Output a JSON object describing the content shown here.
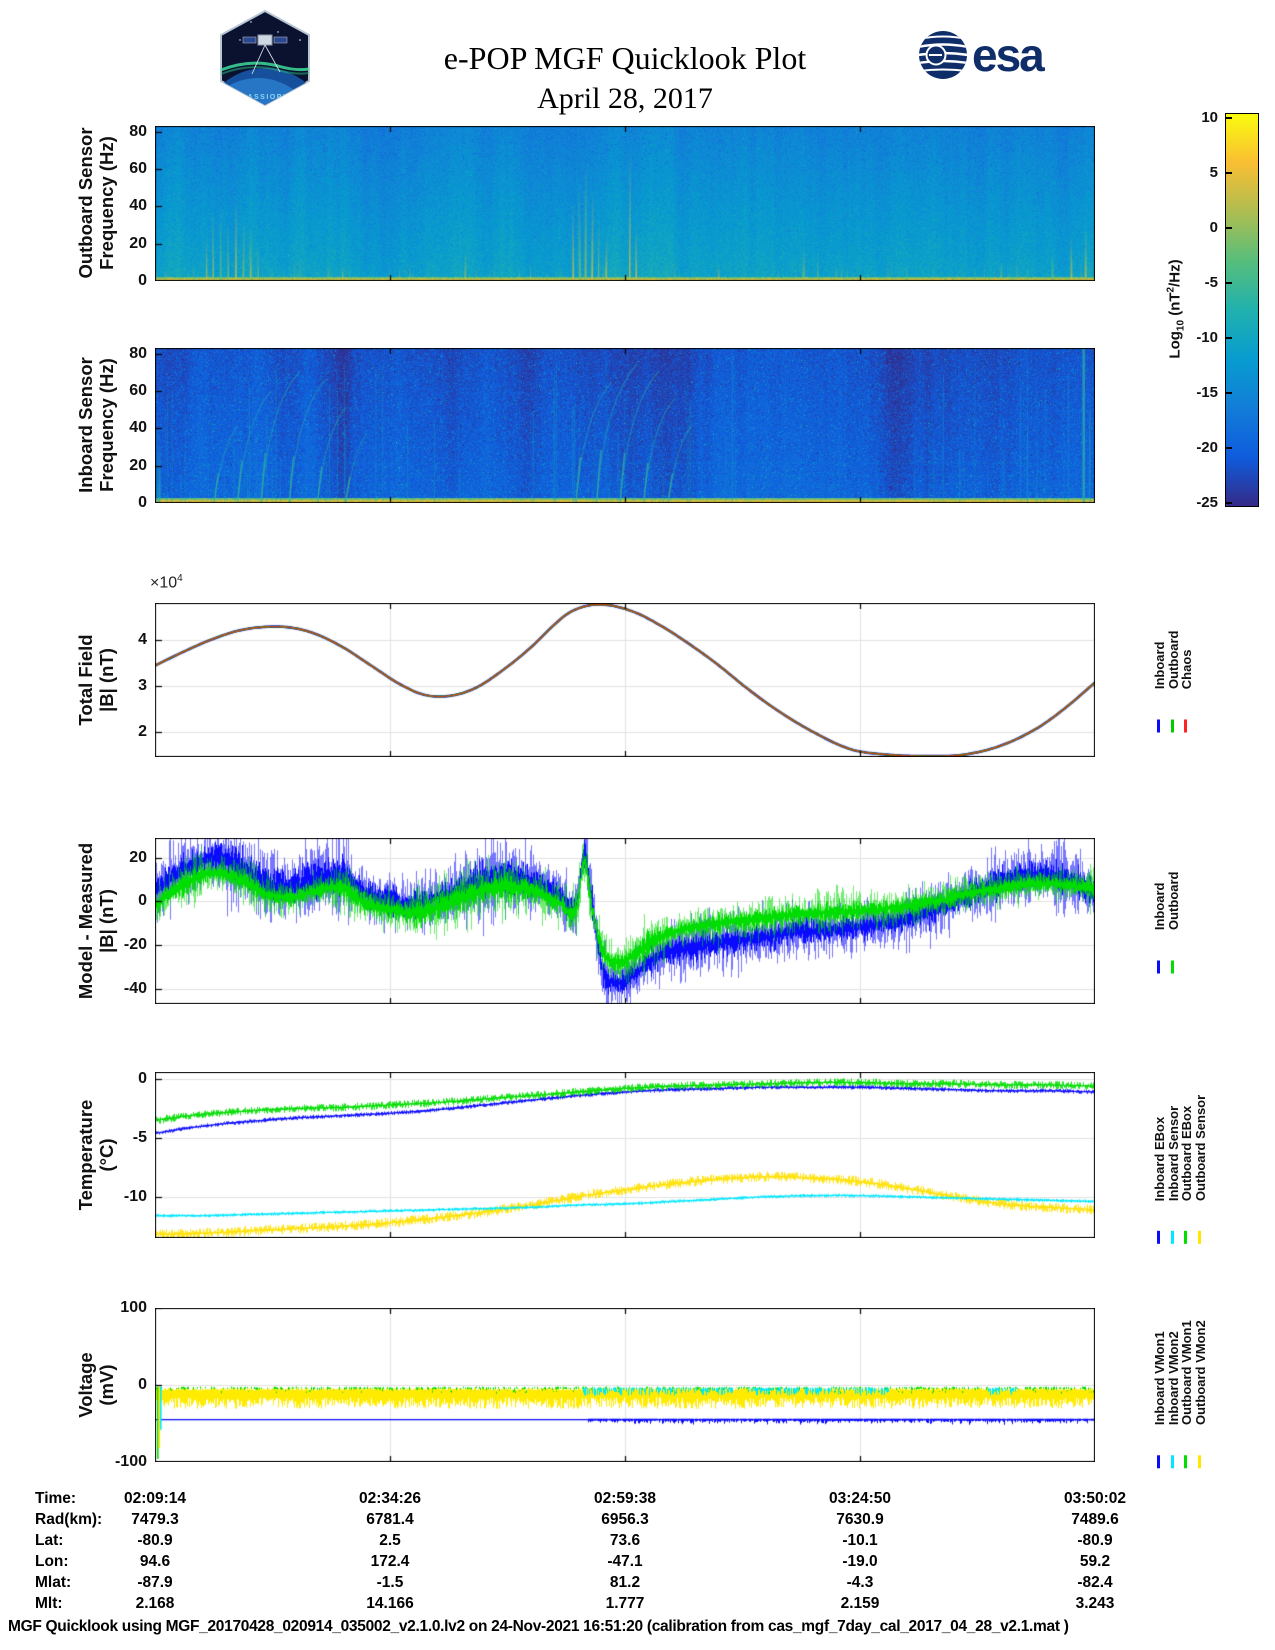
{
  "header": {
    "title": "e-POP MGF Quicklook Plot",
    "date": "April 28, 2017",
    "patch_text": "CASSIOPE",
    "esa_text": "esa"
  },
  "colorbar": {
    "label_prefix": "Log",
    "label_sub": "10",
    "label_mid": " (nT",
    "label_sup": "2",
    "label_suffix": "/Hz)",
    "ticks": [
      "10",
      "5",
      "0",
      "-5",
      "-10",
      "-15",
      "-20",
      "-25"
    ]
  },
  "panels": {
    "outboard_spec": {
      "ylabel1": "Outboard Sensor",
      "ylabel2": "Frequency (Hz)",
      "yticks": [
        "80",
        "60",
        "40",
        "20",
        "0"
      ]
    },
    "inboard_spec": {
      "ylabel1": "Inboard Sensor",
      "ylabel2": "Frequency (Hz)",
      "yticks": [
        "80",
        "60",
        "40",
        "20",
        "0"
      ]
    },
    "total_field": {
      "ylabel1": "Total Field",
      "ylabel2": "|B| (nT)",
      "yticks": [
        "4",
        "3",
        "2"
      ],
      "exp_times": "×10",
      "exp_power": "4",
      "legend": [
        {
          "label": "Inboard",
          "color": "#0a0aff"
        },
        {
          "label": "Outboard",
          "color": "#00cc00"
        },
        {
          "label": "Chaos",
          "color": "#ff2222"
        }
      ]
    },
    "model_measured": {
      "ylabel1": "Model - Measured",
      "ylabel2": "|B| (nT)",
      "yticks": [
        "20",
        "0",
        "-20",
        "-40"
      ],
      "legend": [
        {
          "label": "Inboard",
          "color": "#0a0aff"
        },
        {
          "label": "Outboard",
          "color": "#00dd00"
        }
      ]
    },
    "temperature": {
      "ylabel1": "Temperature",
      "ylabel2": "(°C)",
      "yticks": [
        "0",
        "-5",
        "-10"
      ],
      "legend": [
        {
          "label": "Inboard EBox",
          "color": "#0a0aff"
        },
        {
          "label": "Inboard Sensor",
          "color": "#00e8ff"
        },
        {
          "label": "Outboard EBox",
          "color": "#00dd00"
        },
        {
          "label": "Outboard Sensor",
          "color": "#ffe800"
        }
      ]
    },
    "voltage": {
      "ylabel1": "Voltage",
      "ylabel2": "(mV)",
      "yticks": [
        "100",
        "0",
        "-100"
      ],
      "legend": [
        {
          "label": "Inboard VMon1",
          "color": "#0a0aff"
        },
        {
          "label": "Inboard VMon2",
          "color": "#00e8ff"
        },
        {
          "label": "Outboard VMon1",
          "color": "#00dd00"
        },
        {
          "label": "Outboard VMon2",
          "color": "#ffe800"
        }
      ]
    }
  },
  "ephemeris_table": {
    "row_labels": [
      "Time:",
      "Rad(km):",
      "Lat:",
      "Lon:",
      "Mlat:",
      "Mlt:"
    ],
    "columns": [
      [
        "02:09:14",
        "7479.3",
        "-80.9",
        "94.6",
        "-87.9",
        "2.168"
      ],
      [
        "02:34:26",
        "6781.4",
        "2.5",
        "172.4",
        "-1.5",
        "14.166"
      ],
      [
        "02:59:38",
        "6956.3",
        "73.6",
        "-47.1",
        "81.2",
        "1.777"
      ],
      [
        "03:24:50",
        "7630.9",
        "-10.1",
        "-19.0",
        "-4.3",
        "2.159"
      ],
      [
        "03:50:02",
        "7489.6",
        "-80.9",
        "59.2",
        "-82.4",
        "3.243"
      ]
    ]
  },
  "footer": "MGF Quicklook using MGF_20170428_020914_035002_v2.1.0.lv2 on 24-Nov-2021 16:51:20 (calibration from cas_mgf_7day_cal_2017_04_28_v2.1.mat )",
  "chart_data": [
    {
      "name": "outboard_spectrogram",
      "type": "heatmap",
      "ylabel": "Outboard Sensor Frequency (Hz)",
      "ylim": [
        0,
        80
      ],
      "clim": [
        -25,
        10
      ],
      "clabel": "Log10 (nT²/Hz)",
      "x_time_range": [
        "02:09:14",
        "03:50:02"
      ],
      "summary": "uniform blue-cyan background near -12, bright yellow band below ~3 Hz near +5, vertical burst streaks",
      "render": {
        "base": 0.33,
        "noise": 0.045,
        "grad": 0.14,
        "speckleP": 0.06,
        "speckleA": 0.22,
        "darkP": 0.015,
        "darkT": 0.12,
        "bandH": 5,
        "smallStreaks": 90,
        "streaks": [
          [
            0.055,
            0.3
          ],
          [
            0.062,
            0.46
          ],
          [
            0.07,
            0.52
          ],
          [
            0.078,
            0.4
          ],
          [
            0.086,
            0.55
          ],
          [
            0.094,
            0.42
          ],
          [
            0.102,
            0.34
          ],
          [
            0.11,
            0.25
          ],
          [
            0.2,
            0.1
          ],
          [
            0.33,
            0.18
          ],
          [
            0.4,
            0.12
          ],
          [
            0.445,
            0.5
          ],
          [
            0.452,
            0.64
          ],
          [
            0.458,
            0.76
          ],
          [
            0.465,
            0.58
          ],
          [
            0.472,
            0.42
          ],
          [
            0.48,
            0.3
          ],
          [
            0.505,
            0.86
          ],
          [
            0.512,
            0.36
          ],
          [
            0.6,
            0.1
          ],
          [
            0.69,
            0.22
          ],
          [
            0.705,
            0.18
          ],
          [
            0.8,
            0.1
          ],
          [
            0.9,
            0.12
          ],
          [
            0.955,
            0.2
          ],
          [
            0.975,
            0.28
          ],
          [
            0.99,
            0.34
          ]
        ]
      }
    },
    {
      "name": "inboard_spectrogram",
      "type": "heatmap",
      "ylabel": "Inboard Sensor Frequency (Hz)",
      "ylim": [
        0,
        80
      ],
      "clim": [
        -25,
        10
      ],
      "clabel": "Log10 (nT²/Hz)",
      "x_time_range": [
        "02:09:14",
        "03:50:02"
      ],
      "summary": "dark blue background near -20 with cyan speckle, yellow band below ~3 Hz, rising arc filaments near 02:20 and 02:55, comb of faint vertical lines, bright column near right edge",
      "render": {
        "base": 0.13,
        "noise": 0.05,
        "grad": 0.06,
        "speckleP": 0.05,
        "speckleA": 0.26,
        "darkP": 0.03,
        "darkT": 0.05,
        "cyanP": 0.025,
        "bandH": 6,
        "combRanges": [
          [
            0.0,
            0.33,
            30
          ],
          [
            0.4,
            0.62,
            24
          ],
          [
            0.8,
            1.0,
            16
          ]
        ],
        "arcs": [
          [
            0.065,
            0.5
          ],
          [
            0.09,
            0.72
          ],
          [
            0.115,
            0.85
          ],
          [
            0.145,
            0.8
          ],
          [
            0.175,
            0.62
          ],
          [
            0.205,
            0.45
          ],
          [
            0.45,
            0.78
          ],
          [
            0.472,
            0.9
          ],
          [
            0.497,
            0.85
          ],
          [
            0.522,
            0.68
          ],
          [
            0.548,
            0.5
          ]
        ],
        "hlines": [
          0.07,
          0.12,
          0.18,
          0.26
        ],
        "brightCol": 0.988
      }
    },
    {
      "name": "total_field",
      "type": "line",
      "title": "Total Field |B| (nT)",
      "ylabel": "|B| (nT)",
      "y_scale": 10000,
      "ylim_1e4": [
        1.45,
        4.82
      ],
      "series_names": [
        "Inboard",
        "Outboard",
        "Chaos"
      ],
      "note": "all three curves overlap",
      "x": [
        0,
        0.03,
        0.06,
        0.09,
        0.12,
        0.145,
        0.17,
        0.2,
        0.23,
        0.26,
        0.285,
        0.31,
        0.34,
        0.37,
        0.4,
        0.425,
        0.44,
        0.46,
        0.48,
        0.51,
        0.54,
        0.57,
        0.6,
        0.63,
        0.66,
        0.7,
        0.74,
        0.78,
        0.82,
        0.86,
        0.9,
        0.94,
        0.97,
        1.0
      ],
      "y_1e4": [
        3.45,
        3.75,
        4.02,
        4.22,
        4.3,
        4.28,
        4.15,
        3.85,
        3.45,
        3.05,
        2.82,
        2.78,
        2.95,
        3.35,
        3.85,
        4.35,
        4.6,
        4.76,
        4.78,
        4.62,
        4.3,
        3.9,
        3.45,
        2.95,
        2.5,
        2.0,
        1.62,
        1.5,
        1.47,
        1.5,
        1.7,
        2.1,
        2.55,
        3.08
      ]
    },
    {
      "name": "model_minus_measured",
      "type": "line",
      "title": "Model - Measured |B| (nT)",
      "ylim": [
        -47,
        29
      ],
      "series": [
        {
          "name": "Inboard",
          "color": "#0a0aff",
          "spread": 7,
          "x": [
            0,
            0.02,
            0.04,
            0.06,
            0.09,
            0.12,
            0.15,
            0.17,
            0.2,
            0.22,
            0.25,
            0.28,
            0.31,
            0.34,
            0.37,
            0.4,
            0.43,
            0.449,
            0.456,
            0.463,
            0.475,
            0.49,
            0.51,
            0.53,
            0.56,
            0.6,
            0.64,
            0.68,
            0.72,
            0.76,
            0.8,
            0.84,
            0.87,
            0.9,
            0.93,
            0.96,
            0.98,
            1.0
          ],
          "y": [
            5,
            12,
            17,
            20,
            16,
            8,
            7,
            10,
            11,
            5,
            0,
            -1,
            3,
            8,
            11,
            9,
            3,
            0,
            22,
            5,
            -30,
            -37,
            -33,
            -26,
            -22,
            -19,
            -17,
            -14,
            -13,
            -11,
            -8,
            -2,
            4,
            9,
            12,
            11,
            8,
            3
          ]
        },
        {
          "name": "Outboard",
          "color": "#00dd00",
          "spread": 4.5,
          "x": [
            0,
            0.02,
            0.04,
            0.06,
            0.09,
            0.12,
            0.15,
            0.17,
            0.2,
            0.22,
            0.25,
            0.28,
            0.31,
            0.34,
            0.37,
            0.4,
            0.43,
            0.449,
            0.456,
            0.463,
            0.475,
            0.49,
            0.51,
            0.53,
            0.56,
            0.6,
            0.64,
            0.68,
            0.72,
            0.76,
            0.8,
            0.84,
            0.87,
            0.9,
            0.93,
            0.96,
            0.98,
            1.0
          ],
          "y": [
            -2,
            5,
            10,
            13,
            10,
            3,
            2,
            5,
            6,
            0,
            -4,
            -5,
            -1,
            4,
            7,
            5,
            -1,
            -2,
            18,
            0,
            -22,
            -28,
            -24,
            -18,
            -13,
            -10,
            -8,
            -6,
            -5,
            -4,
            -2,
            1,
            4,
            6,
            8,
            8,
            7,
            5
          ]
        }
      ]
    },
    {
      "name": "temperature",
      "type": "line",
      "title": "Temperature (°C)",
      "ylim": [
        -13.5,
        0.6
      ],
      "x": [
        0,
        0.05,
        0.1,
        0.15,
        0.2,
        0.25,
        0.3,
        0.35,
        0.4,
        0.45,
        0.5,
        0.55,
        0.6,
        0.65,
        0.7,
        0.75,
        0.8,
        0.85,
        0.9,
        0.95,
        1.0
      ],
      "series": [
        {
          "name": "Inboard EBox",
          "color": "#0a0aff",
          "spread": 0.12,
          "y": [
            -4.6,
            -4.0,
            -3.6,
            -3.3,
            -3.1,
            -2.9,
            -2.6,
            -2.2,
            -1.8,
            -1.4,
            -1.1,
            -0.9,
            -0.8,
            -0.7,
            -0.7,
            -0.7,
            -0.8,
            -0.9,
            -1.0,
            -1.0,
            -1.1
          ]
        },
        {
          "name": "Inboard Sensor",
          "color": "#00e8ff",
          "spread": 0.1,
          "y": [
            -11.6,
            -11.6,
            -11.5,
            -11.4,
            -11.3,
            -11.2,
            -11.1,
            -11.0,
            -10.9,
            -10.7,
            -10.6,
            -10.4,
            -10.2,
            -10.0,
            -9.9,
            -9.9,
            -10.0,
            -10.1,
            -10.2,
            -10.3,
            -10.4
          ]
        },
        {
          "name": "Outboard EBox",
          "color": "#00dd00",
          "spread": 0.22,
          "y": [
            -3.5,
            -3.0,
            -2.7,
            -2.5,
            -2.4,
            -2.2,
            -2.0,
            -1.7,
            -1.4,
            -1.1,
            -0.8,
            -0.6,
            -0.5,
            -0.4,
            -0.3,
            -0.3,
            -0.4,
            -0.4,
            -0.5,
            -0.5,
            -0.6
          ]
        },
        {
          "name": "Outboard Sensor",
          "color": "#ffe100",
          "spread": 0.28,
          "y": [
            -13.2,
            -13.1,
            -12.9,
            -12.7,
            -12.5,
            -12.2,
            -11.8,
            -11.3,
            -10.7,
            -10.0,
            -9.4,
            -8.9,
            -8.5,
            -8.3,
            -8.4,
            -8.7,
            -9.3,
            -10.0,
            -10.6,
            -10.9,
            -11.1
          ]
        }
      ]
    },
    {
      "name": "voltage",
      "type": "line",
      "title": "Voltage (mV)",
      "ylim": [
        -100,
        100
      ],
      "series": [
        {
          "name": "Outboard VMon1",
          "color": "#00dd00",
          "style": "spikes",
          "top": -2,
          "depth": 7,
          "density": 0.5,
          "x_ranges": [
            [
              0,
              1
            ]
          ]
        },
        {
          "name": "Outboard VMon2",
          "color": "#ffeb00",
          "style": "band",
          "top": -4,
          "depth": 27,
          "density": 1,
          "x_ranges": [
            [
              0,
              1
            ]
          ]
        },
        {
          "name": "Inboard VMon2",
          "color": "#00e8ff",
          "style": "spikes",
          "top": -3,
          "depth": 11,
          "density": 0.55,
          "x_ranges": [
            [
              0.455,
              0.615
            ],
            [
              0.63,
              0.78
            ],
            [
              0.885,
              0.915
            ]
          ]
        },
        {
          "name": "Inboard VMon1",
          "color": "#0a0aff",
          "style": "line_fuzz",
          "base": -45,
          "fuzz_from": 0.46,
          "fuzz_depth": 6
        }
      ],
      "edge_burst": {
        "x": 0.003,
        "entries": [
          [
            "#00dd00",
            -96
          ],
          [
            "#ffeb00",
            -82
          ],
          [
            "#00e8ff",
            -58
          ]
        ]
      }
    }
  ]
}
